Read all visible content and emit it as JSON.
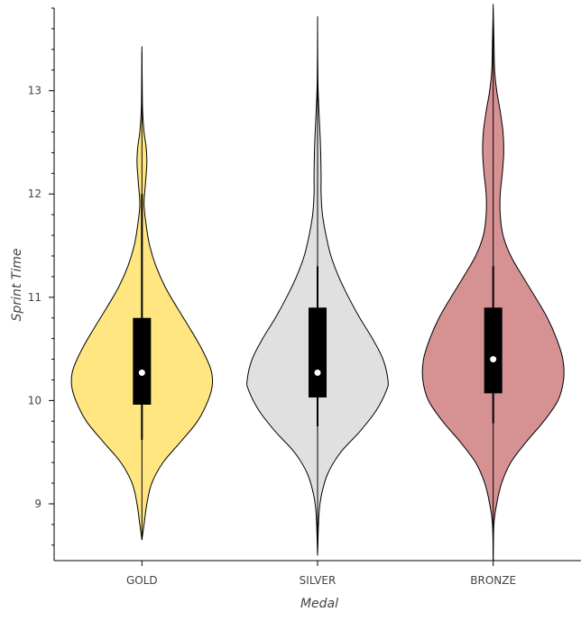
{
  "chart_data": {
    "type": "violin",
    "xlabel": "Medal",
    "ylabel": "Sprint Time",
    "ylim": [
      8.45,
      13.8
    ],
    "yticks": [
      9,
      10,
      11,
      12,
      13
    ],
    "categories": [
      "GOLD",
      "SILVER",
      "BRONZE"
    ],
    "series": [
      {
        "category": "GOLD",
        "color": "#FFE680",
        "min": 8.65,
        "max": 13.38,
        "q1": 9.96,
        "median": 10.27,
        "q3": 10.8,
        "whisker_low": 9.62,
        "whisker_high": 12.0,
        "density": [
          [
            8.65,
            0.0
          ],
          [
            8.8,
            0.03
          ],
          [
            9.0,
            0.07
          ],
          [
            9.2,
            0.14
          ],
          [
            9.4,
            0.3
          ],
          [
            9.6,
            0.55
          ],
          [
            9.8,
            0.79
          ],
          [
            10.0,
            0.94
          ],
          [
            10.15,
            1.0
          ],
          [
            10.3,
            0.98
          ],
          [
            10.5,
            0.85
          ],
          [
            10.7,
            0.68
          ],
          [
            10.9,
            0.5
          ],
          [
            11.1,
            0.33
          ],
          [
            11.3,
            0.2
          ],
          [
            11.5,
            0.11
          ],
          [
            11.7,
            0.06
          ],
          [
            11.9,
            0.03
          ],
          [
            12.1,
            0.05
          ],
          [
            12.3,
            0.07
          ],
          [
            12.45,
            0.06
          ],
          [
            12.6,
            0.03
          ],
          [
            12.8,
            0.01
          ],
          [
            13.0,
            0.005
          ],
          [
            13.38,
            0.0
          ]
        ]
      },
      {
        "category": "SILVER",
        "color": "#E0E0E0",
        "min": 8.5,
        "max": 13.65,
        "q1": 10.03,
        "median": 10.27,
        "q3": 10.9,
        "whisker_low": 9.75,
        "whisker_high": 11.3,
        "density": [
          [
            8.5,
            0.0
          ],
          [
            8.9,
            0.02
          ],
          [
            9.1,
            0.06
          ],
          [
            9.3,
            0.15
          ],
          [
            9.5,
            0.33
          ],
          [
            9.7,
            0.6
          ],
          [
            9.9,
            0.83
          ],
          [
            10.1,
            0.98
          ],
          [
            10.2,
            1.0
          ],
          [
            10.4,
            0.93
          ],
          [
            10.6,
            0.78
          ],
          [
            10.8,
            0.6
          ],
          [
            11.0,
            0.44
          ],
          [
            11.2,
            0.3
          ],
          [
            11.4,
            0.19
          ],
          [
            11.6,
            0.12
          ],
          [
            11.8,
            0.07
          ],
          [
            12.0,
            0.05
          ],
          [
            12.2,
            0.05
          ],
          [
            12.5,
            0.04
          ],
          [
            12.8,
            0.02
          ],
          [
            13.1,
            0.005
          ],
          [
            13.65,
            0.0
          ]
        ]
      },
      {
        "category": "BRONZE",
        "color": "#D69193",
        "min": 8.45,
        "max": 13.8,
        "q1": 10.07,
        "median": 10.4,
        "q3": 10.9,
        "whisker_low": 9.78,
        "whisker_high": 11.3,
        "density": [
          [
            8.45,
            0.0
          ],
          [
            8.8,
            0.01
          ],
          [
            9.0,
            0.05
          ],
          [
            9.2,
            0.12
          ],
          [
            9.4,
            0.25
          ],
          [
            9.6,
            0.47
          ],
          [
            9.8,
            0.72
          ],
          [
            10.0,
            0.92
          ],
          [
            10.2,
            1.0
          ],
          [
            10.4,
            0.99
          ],
          [
            10.6,
            0.9
          ],
          [
            10.8,
            0.77
          ],
          [
            11.0,
            0.6
          ],
          [
            11.2,
            0.42
          ],
          [
            11.4,
            0.25
          ],
          [
            11.6,
            0.14
          ],
          [
            11.8,
            0.1
          ],
          [
            12.0,
            0.1
          ],
          [
            12.2,
            0.13
          ],
          [
            12.4,
            0.15
          ],
          [
            12.6,
            0.14
          ],
          [
            12.8,
            0.1
          ],
          [
            13.0,
            0.05
          ],
          [
            13.2,
            0.02
          ],
          [
            13.5,
            0.01
          ],
          [
            13.8,
            0.0
          ]
        ]
      }
    ]
  }
}
